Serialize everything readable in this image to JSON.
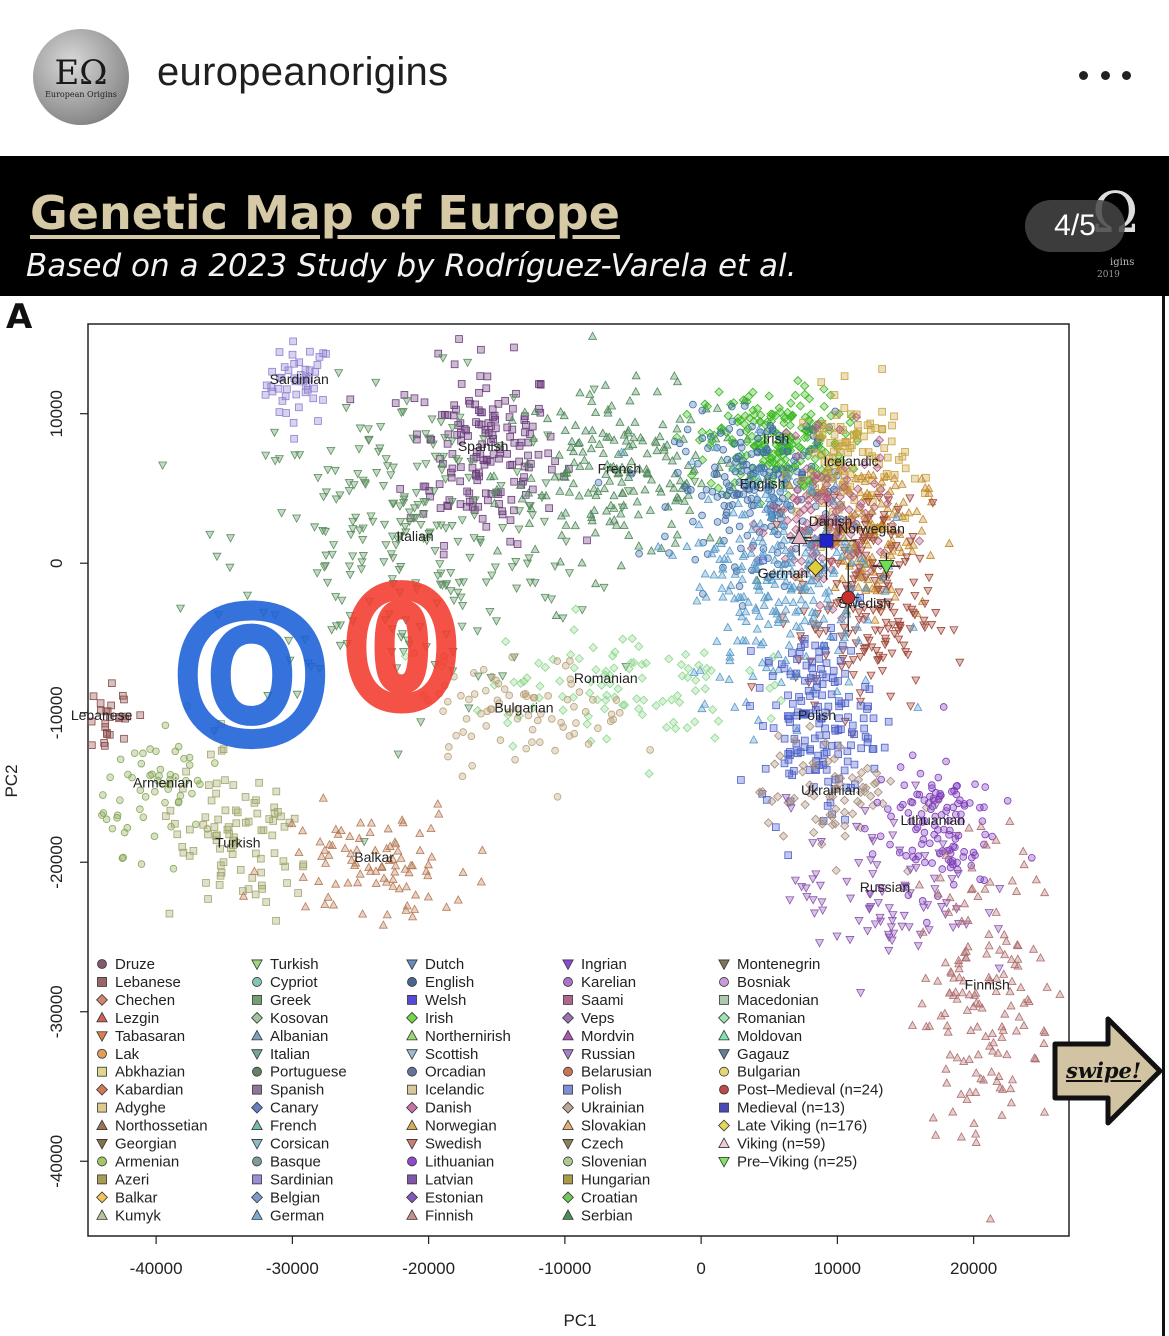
{
  "post": {
    "username": "europeanorigins",
    "avatar_text": "ΕΩ",
    "avatar_subtext": "European Origins",
    "more_icon": "more-horizontal-icon"
  },
  "banner": {
    "title": "Genetic Map of Europe",
    "subtitle": "Based on a 2023 Study by Rodríguez-Varela et al.",
    "logo_text": "Ω",
    "logo_subtext": "igins",
    "logo_subtext2": "2019",
    "page_indicator": "4/5",
    "title_color": "#d6c9a6",
    "band_color": "#000000"
  },
  "panel_label": "A",
  "swipe": {
    "label": "swipe!",
    "fill": "#d2c4a2"
  },
  "chart_data": {
    "type": "scatter",
    "title": "",
    "xlabel": "PC1",
    "ylabel": "PC2",
    "xlim": [
      -45000,
      27000
    ],
    "ylim": [
      -45000,
      16000
    ],
    "xticks": [
      -40000,
      -30000,
      -20000,
      -10000,
      0,
      10000,
      20000
    ],
    "xtick_labels": [
      "-40000",
      "-30000",
      "-20000",
      "-10000",
      "0",
      "10000",
      "20000"
    ],
    "yticks": [
      10000,
      0,
      -10000,
      -20000,
      -30000,
      -40000
    ],
    "ytick_labels": [
      "10000",
      "0",
      "-10000",
      "-20000",
      "-30000",
      "-40000"
    ],
    "grid": false,
    "legend_position": "bottom-inside",
    "clusters": [
      {
        "label": "Sardinian",
        "x": -29500,
        "y": 12000,
        "sx": 1200,
        "sy": 1400,
        "n": 45,
        "color": "#8f7fd1",
        "shape": "square"
      },
      {
        "label": "Spanish",
        "x": -16000,
        "y": 7500,
        "sx": 2800,
        "sy": 3000,
        "n": 170,
        "color": "#6b3c7c",
        "shape": "square"
      },
      {
        "label": "French",
        "x": -6000,
        "y": 6000,
        "sx": 4500,
        "sy": 2800,
        "n": 200,
        "color": "#4f8a5b",
        "shape": "triangle"
      },
      {
        "label": "Italian",
        "x": -21000,
        "y": 1500,
        "sx": 6500,
        "sy": 5000,
        "n": 260,
        "color": "#5b8f5e",
        "shape": "triangle-down"
      },
      {
        "label": "Irish",
        "x": 5500,
        "y": 8000,
        "sx": 2500,
        "sy": 1800,
        "n": 220,
        "color": "#3ab81f",
        "shape": "diamond"
      },
      {
        "label": "English",
        "x": 4500,
        "y": 5000,
        "sx": 3200,
        "sy": 2500,
        "n": 220,
        "color": "#3f6ea8",
        "shape": "circle"
      },
      {
        "label": "Icelandic",
        "x": 11000,
        "y": 6500,
        "sx": 2000,
        "sy": 2500,
        "n": 120,
        "color": "#c9a23c",
        "shape": "square"
      },
      {
        "label": "Danish",
        "x": 9500,
        "y": 2500,
        "sx": 2200,
        "sy": 2500,
        "n": 150,
        "color": "#b05b80",
        "shape": "diamond"
      },
      {
        "label": "Norwegian",
        "x": 12500,
        "y": 2000,
        "sx": 2000,
        "sy": 2500,
        "n": 130,
        "color": "#c38a2c",
        "shape": "triangle"
      },
      {
        "label": "Swedish",
        "x": 12000,
        "y": -3000,
        "sx": 2500,
        "sy": 3500,
        "n": 170,
        "color": "#a0483a",
        "shape": "triangle-down"
      },
      {
        "label": "German",
        "x": 6000,
        "y": -1000,
        "sx": 3500,
        "sy": 4000,
        "n": 260,
        "color": "#5a9bc8",
        "shape": "triangle"
      },
      {
        "label": "Polish",
        "x": 8500,
        "y": -10500,
        "sx": 2000,
        "sy": 3000,
        "n": 170,
        "color": "#4d60c9",
        "shape": "square"
      },
      {
        "label": "Ukrainian",
        "x": 9500,
        "y": -15500,
        "sx": 2500,
        "sy": 2000,
        "n": 70,
        "color": "#a58b7a",
        "shape": "diamond"
      },
      {
        "label": "Lithuanian",
        "x": 17000,
        "y": -17500,
        "sx": 2200,
        "sy": 2200,
        "n": 120,
        "color": "#7d3cbb",
        "shape": "circle"
      },
      {
        "label": "Russian",
        "x": 13500,
        "y": -22000,
        "sx": 3500,
        "sy": 3000,
        "n": 90,
        "color": "#8b55b0",
        "shape": "triangle-down"
      },
      {
        "label": "Finnish",
        "x": 21000,
        "y": -28500,
        "sx": 2500,
        "sy": 5000,
        "n": 150,
        "color": "#b06f6f",
        "shape": "triangle"
      },
      {
        "label": "Romanian",
        "x": -7000,
        "y": -8000,
        "sx": 5000,
        "sy": 2000,
        "n": 100,
        "color": "#8fd88f",
        "shape": "diamond"
      },
      {
        "label": "Bulgarian",
        "x": -13000,
        "y": -10000,
        "sx": 4000,
        "sy": 1800,
        "n": 80,
        "color": "#b9a37a",
        "shape": "circle"
      },
      {
        "label": "Lebanese",
        "x": -44000,
        "y": -10500,
        "sx": 1200,
        "sy": 1500,
        "n": 35,
        "color": "#8a4a4a",
        "shape": "square"
      },
      {
        "label": "Armenian",
        "x": -39500,
        "y": -15000,
        "sx": 2200,
        "sy": 2000,
        "n": 60,
        "color": "#8aa85a",
        "shape": "circle"
      },
      {
        "label": "Turkish",
        "x": -34000,
        "y": -19000,
        "sx": 3000,
        "sy": 2500,
        "n": 90,
        "color": "#a2a66a",
        "shape": "square"
      },
      {
        "label": "Balkar",
        "x": -24000,
        "y": -20000,
        "sx": 3500,
        "sy": 2000,
        "n": 90,
        "color": "#b77b55",
        "shape": "triangle"
      }
    ],
    "group_markers": [
      {
        "label": "Post-Medieval (n=24)",
        "x": 10800,
        "y": -2300,
        "xerr": 800,
        "yerr": 2300,
        "color": "#c82f2f",
        "shape": "circle"
      },
      {
        "label": "Medieval (n=13)",
        "x": 9200,
        "y": 1500,
        "xerr": 2200,
        "yerr": 2600,
        "color": "#2222cc",
        "shape": "square"
      },
      {
        "label": "Late Viking (n=176)",
        "x": 8400,
        "y": -300,
        "xerr": 400,
        "yerr": 600,
        "color": "#e0cf3a",
        "shape": "diamond"
      },
      {
        "label": "Viking (n=59)",
        "x": 7200,
        "y": 1700,
        "xerr": 900,
        "yerr": 1200,
        "color": "#e6b7c6",
        "shape": "triangle"
      },
      {
        "label": "Pre-Viking (n=25)",
        "x": 13600,
        "y": -200,
        "xerr": 1000,
        "yerr": 900,
        "color": "#6fe04f",
        "shape": "triangle-down"
      }
    ],
    "annotations": [
      {
        "text": "O",
        "color": "#1a5fd6",
        "x": -33000,
        "y": -8500
      },
      {
        "text": "0",
        "color": "#f23a2c",
        "x": -22000,
        "y": -6500
      }
    ],
    "legend_columns": [
      [
        {
          "label": "Druze",
          "color": "#6b3d56",
          "shape": "circle"
        },
        {
          "label": "Lebanese",
          "color": "#8b4a4a",
          "shape": "square"
        },
        {
          "label": "Chechen",
          "color": "#c9704f",
          "shape": "diamond"
        },
        {
          "label": "Lezgin",
          "color": "#c0483a",
          "shape": "triangle"
        },
        {
          "label": "Tabasaran",
          "color": "#d46a2a",
          "shape": "triangle-down"
        },
        {
          "label": "Lak",
          "color": "#e08a3c",
          "shape": "circle"
        },
        {
          "label": "Abkhazian",
          "color": "#d8d27a",
          "shape": "square"
        },
        {
          "label": "Kabardian",
          "color": "#c8603a",
          "shape": "diamond"
        },
        {
          "label": "Adyghe",
          "color": "#d9c07a",
          "shape": "square"
        },
        {
          "label": "Northossetian",
          "color": "#8b5a3a",
          "shape": "triangle"
        },
        {
          "label": "Georgian",
          "color": "#6e5a2e",
          "shape": "triangle-down"
        },
        {
          "label": "Armenian",
          "color": "#8fbf4a",
          "shape": "circle"
        },
        {
          "label": "Azeri",
          "color": "#9b8a3a",
          "shape": "square"
        },
        {
          "label": "Balkar",
          "color": "#f0b840",
          "shape": "diamond"
        },
        {
          "label": "Kumyk",
          "color": "#a9b88a",
          "shape": "triangle"
        }
      ],
      [
        {
          "label": "Turkish",
          "color": "#8fcf6a",
          "shape": "triangle-down"
        },
        {
          "label": "Cypriot",
          "color": "#6fb8a8",
          "shape": "circle"
        },
        {
          "label": "Greek",
          "color": "#5a8f5a",
          "shape": "square"
        },
        {
          "label": "Kosovan",
          "color": "#8fb88f",
          "shape": "diamond"
        },
        {
          "label": "Albanian",
          "color": "#6a8fb0",
          "shape": "triangle"
        },
        {
          "label": "Italian",
          "color": "#5a9a7a",
          "shape": "triangle-down"
        },
        {
          "label": "Portuguese",
          "color": "#4a6a4a",
          "shape": "circle"
        },
        {
          "label": "Spanish",
          "color": "#7a5a8a",
          "shape": "square"
        },
        {
          "label": "Canary",
          "color": "#4a6ab0",
          "shape": "diamond"
        },
        {
          "label": "French",
          "color": "#5ab0a0",
          "shape": "triangle"
        },
        {
          "label": "Corsican",
          "color": "#7ab0c0",
          "shape": "triangle-down"
        },
        {
          "label": "Basque",
          "color": "#6a8a8a",
          "shape": "circle"
        },
        {
          "label": "Sardinian",
          "color": "#8a7ad0",
          "shape": "square"
        },
        {
          "label": "Belgian",
          "color": "#6a8ac0",
          "shape": "diamond"
        },
        {
          "label": "German",
          "color": "#5aa0d0",
          "shape": "triangle"
        }
      ],
      [
        {
          "label": "Dutch",
          "color": "#4a7ab0",
          "shape": "triangle-down"
        },
        {
          "label": "English",
          "color": "#2a4a7a",
          "shape": "circle"
        },
        {
          "label": "Welsh",
          "color": "#3a2ad0",
          "shape": "square"
        },
        {
          "label": "Irish",
          "color": "#5ad02a",
          "shape": "diamond"
        },
        {
          "label": "Northernirish",
          "color": "#8ad05a",
          "shape": "triangle"
        },
        {
          "label": "Scottish",
          "color": "#8ab0d0",
          "shape": "triangle-down"
        },
        {
          "label": "Orcadian",
          "color": "#4a5a8a",
          "shape": "circle"
        },
        {
          "label": "Icelandic",
          "color": "#d0c08a",
          "shape": "square"
        },
        {
          "label": "Danish",
          "color": "#c05a9a",
          "shape": "diamond"
        },
        {
          "label": "Norwegian",
          "color": "#d0a03a",
          "shape": "triangle"
        },
        {
          "label": "Swedish",
          "color": "#c06a5a",
          "shape": "triangle-down"
        },
        {
          "label": "Lithuanian",
          "color": "#7a2ac0",
          "shape": "circle"
        },
        {
          "label": "Latvian",
          "color": "#6a3a9a",
          "shape": "square"
        },
        {
          "label": "Estonian",
          "color": "#6a3ab0",
          "shape": "diamond"
        },
        {
          "label": "Finnish",
          "color": "#c07a7a",
          "shape": "triangle"
        }
      ],
      [
        {
          "label": "Ingrian",
          "color": "#7a2ad0",
          "shape": "triangle-down"
        },
        {
          "label": "Karelian",
          "color": "#9a5ac0",
          "shape": "circle"
        },
        {
          "label": "Saami",
          "color": "#a04a7a",
          "shape": "square"
        },
        {
          "label": "Veps",
          "color": "#8a5aa0",
          "shape": "diamond"
        },
        {
          "label": "Mordvin",
          "color": "#a03aa0",
          "shape": "triangle"
        },
        {
          "label": "Russian",
          "color": "#9a6ac0",
          "shape": "triangle-down"
        },
        {
          "label": "Belarusian",
          "color": "#c05a3a",
          "shape": "circle"
        },
        {
          "label": "Polish",
          "color": "#6a7ad0",
          "shape": "square"
        },
        {
          "label": "Ukrainian",
          "color": "#b09a8a",
          "shape": "diamond"
        },
        {
          "label": "Slovakian",
          "color": "#e0a05a",
          "shape": "triangle"
        },
        {
          "label": "Czech",
          "color": "#7a6a3a",
          "shape": "triangle-down"
        },
        {
          "label": "Slovenian",
          "color": "#a0c07a",
          "shape": "circle"
        },
        {
          "label": "Hungarian",
          "color": "#9a8a2a",
          "shape": "square"
        },
        {
          "label": "Croatian",
          "color": "#5ac03a",
          "shape": "diamond"
        },
        {
          "label": "Serbian",
          "color": "#2a7a3a",
          "shape": "triangle"
        }
      ],
      [
        {
          "label": "Montenegrin",
          "color": "#6a5a3a",
          "shape": "triangle-down"
        },
        {
          "label": "Bosniak",
          "color": "#c08ad0",
          "shape": "circle"
        },
        {
          "label": "Macedonian",
          "color": "#a0c0a0",
          "shape": "square"
        },
        {
          "label": "Romanian",
          "color": "#8ae0a0",
          "shape": "diamond"
        },
        {
          "label": "Moldovan",
          "color": "#6ae0a0",
          "shape": "triangle"
        },
        {
          "label": "Gagauz",
          "color": "#4a6a8a",
          "shape": "triangle-down"
        },
        {
          "label": "Bulgarian",
          "color": "#e0d05a",
          "shape": "circle"
        },
        {
          "label": "Post–Medieval (n=24)",
          "color": "#b02a2a",
          "shape": "circle"
        },
        {
          "label": "Medieval (n=13)",
          "color": "#2a2ab0",
          "shape": "square"
        },
        {
          "label": "Late Viking (n=176)",
          "color": "#e0d03a",
          "shape": "diamond"
        },
        {
          "label": "Viking (n=59)",
          "color": "#f0c0d0",
          "shape": "triangle"
        },
        {
          "label": "Pre–Viking (n=25)",
          "color": "#6ae04a",
          "shape": "triangle-down"
        }
      ]
    ]
  }
}
